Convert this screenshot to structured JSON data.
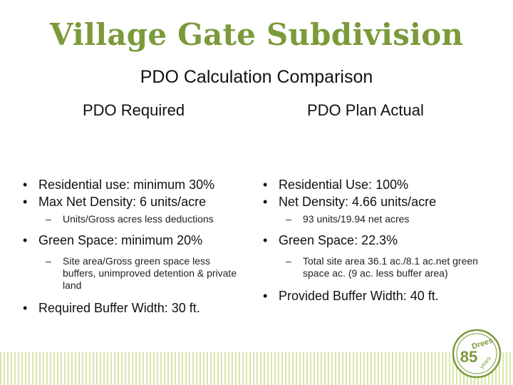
{
  "slide": {
    "title": "Village Gate Subdivision",
    "subtitle": "PDO Calculation Comparison",
    "accent_color": "#7b9a3a",
    "stripe_color": "#d8e6a7"
  },
  "left": {
    "heading": "PDO Required",
    "items": [
      "Residential use: minimum 30%",
      "Max Net Density: 6 units/acre",
      "Units/Gross acres less deductions",
      "Green Space: minimum 20%",
      "Site area/Gross green space less buffers, unimproved detention & private land",
      "Required Buffer Width: 30 ft."
    ]
  },
  "right": {
    "heading": "PDO Plan Actual",
    "items": [
      "Residential Use: 100%",
      "Net Density: 4.66 units/acre",
      "93 units/19.94 net acres",
      "Green Space: 22.3%",
      "Total site area 36.1 ac./8.1 ac.net green space ac. (9 ac. less buffer area)",
      "Provided Buffer Width: 40 ft."
    ]
  },
  "logo": {
    "icon": "drees-85-years-badge",
    "brand": "Drees",
    "number": "85",
    "tagline": "years"
  },
  "glyphs": {
    "bullet": "•",
    "dash": "–"
  }
}
